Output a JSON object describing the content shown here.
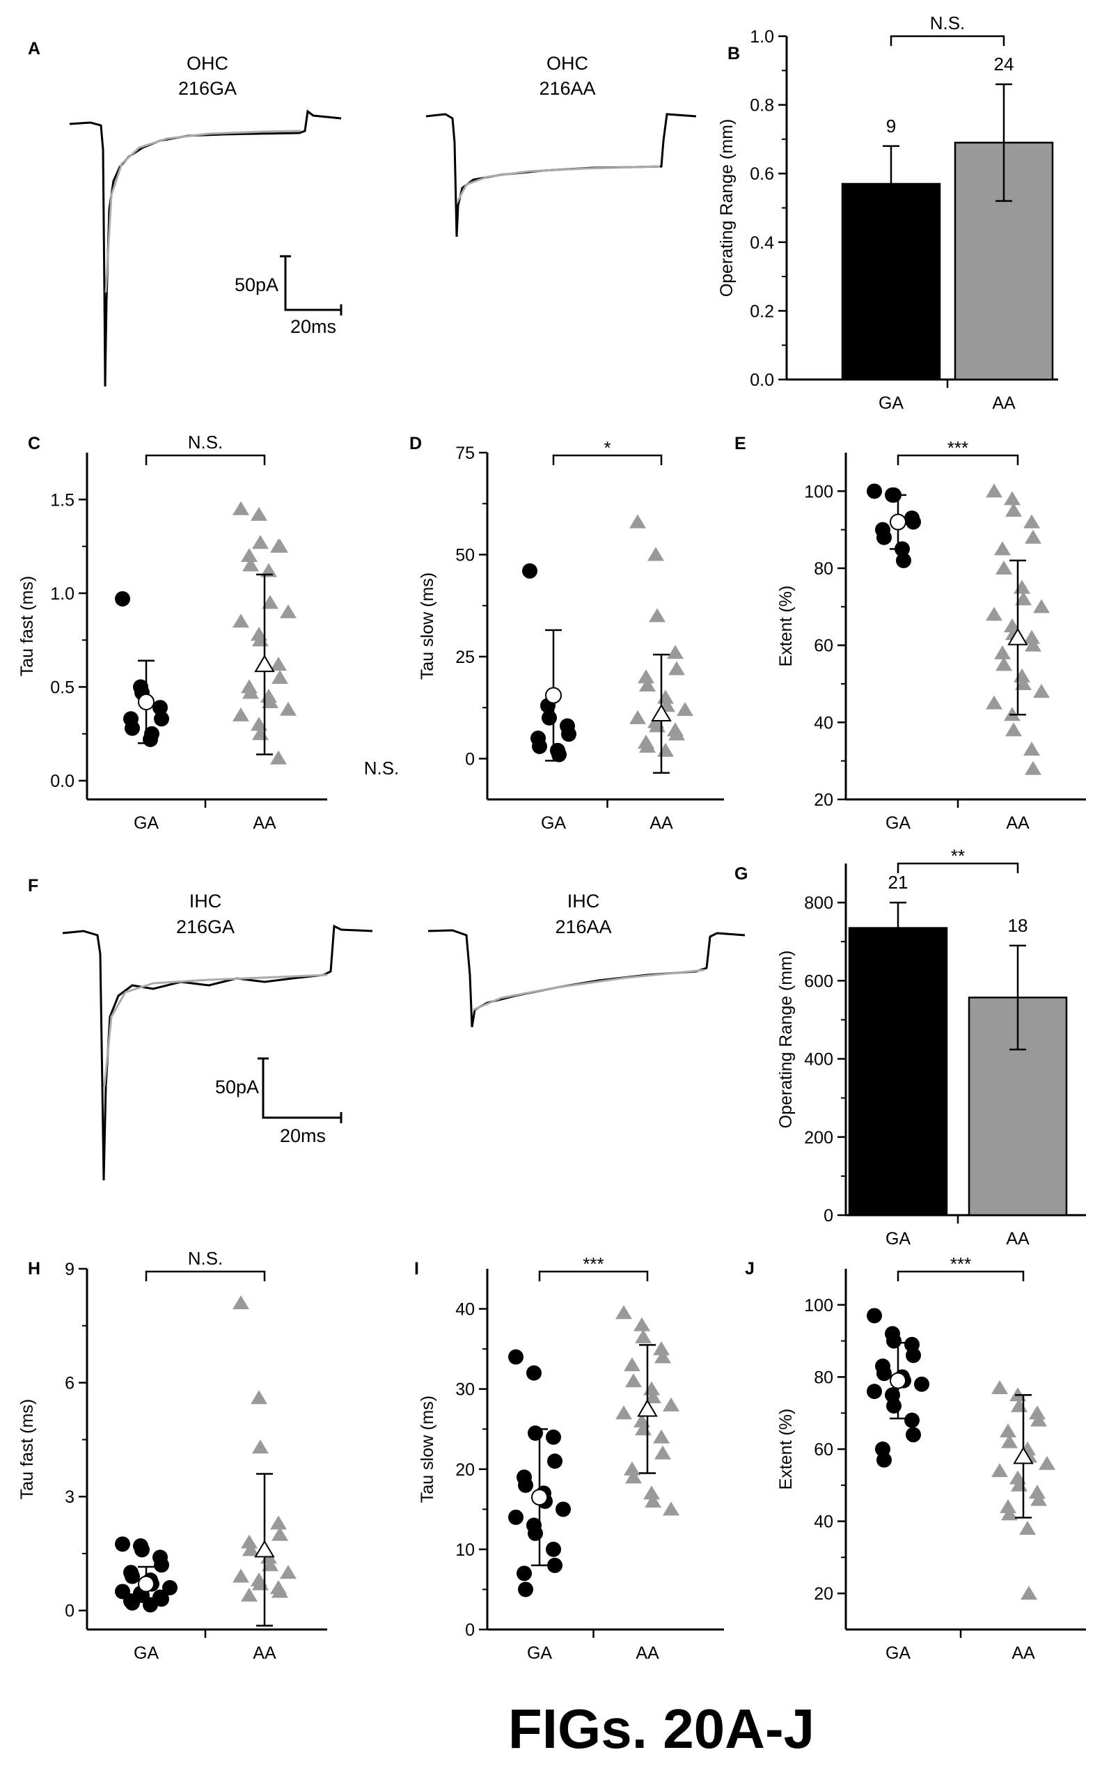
{
  "figure_title": "FIGs. 20A-J",
  "stray_text": "N.S.",
  "colors": {
    "ga": "#000000",
    "aa": "#999999",
    "open_marker": "#ffffff",
    "fit_line": "#aaaaaa"
  },
  "traces": [
    {
      "panel": "A",
      "labels": [
        {
          "line1": "OHC",
          "line2": "216GA"
        },
        {
          "line1": "OHC",
          "line2": "216AA"
        }
      ],
      "scale": {
        "current": "50pA",
        "time": "20ms"
      }
    },
    {
      "panel": "F",
      "labels": [
        {
          "line1": "IHC",
          "line2": "216GA"
        },
        {
          "line1": "IHC",
          "line2": "216AA"
        }
      ],
      "scale": {
        "current": "50pA",
        "time": "20ms"
      }
    }
  ],
  "chart_data": [
    {
      "panel": "B",
      "type": "bar",
      "ylabel": "Operating Range (mm)",
      "categories": [
        "GA",
        "AA"
      ],
      "values": [
        0.57,
        0.69
      ],
      "errors": [
        0.11,
        0.17
      ],
      "n_labels": [
        "9",
        "24"
      ],
      "significance": "N.S.",
      "ylim": [
        0,
        1.0
      ],
      "yticks": [
        0.0,
        0.2,
        0.4,
        0.6,
        0.8,
        1.0
      ],
      "ytick_labels": [
        "0.0",
        "0.2",
        "0.4",
        "0.6",
        "0.8",
        "1.0"
      ]
    },
    {
      "panel": "G",
      "type": "bar",
      "ylabel": "Operating Range (mm)",
      "categories": [
        "GA",
        "AA"
      ],
      "values": [
        735,
        557
      ],
      "errors": [
        65,
        133
      ],
      "n_labels": [
        "21",
        "18"
      ],
      "significance": "**",
      "ylim": [
        0,
        900
      ],
      "yticks": [
        0,
        200,
        400,
        600,
        800
      ],
      "ytick_labels": [
        "0",
        "200",
        "400",
        "600",
        "800"
      ]
    },
    {
      "panel": "C",
      "type": "scatter",
      "ylabel": "Tau fast (ms)",
      "categories": [
        "GA",
        "AA"
      ],
      "significance": "N.S.",
      "ylim": [
        -0.1,
        1.75
      ],
      "yticks": [
        0.0,
        0.5,
        1.0,
        1.5
      ],
      "ytick_labels": [
        "0.0",
        "0.5",
        "1.0",
        "1.5"
      ],
      "series": [
        {
          "category": "GA",
          "marker": "circle",
          "mean": 0.42,
          "sd": 0.22,
          "points": [
            0.97,
            0.5,
            0.47,
            0.39,
            0.33,
            0.33,
            0.28,
            0.22,
            0.25
          ]
        },
        {
          "category": "AA",
          "marker": "triangle",
          "mean": 0.62,
          "sd": 0.48,
          "points": [
            1.45,
            1.42,
            1.27,
            1.25,
            1.25,
            1.2,
            1.15,
            1.12,
            0.95,
            0.9,
            0.85,
            0.78,
            0.75,
            0.62,
            0.55,
            0.5,
            0.47,
            0.45,
            0.42,
            0.38,
            0.35,
            0.3,
            0.25,
            0.12
          ]
        }
      ]
    },
    {
      "panel": "D",
      "type": "scatter",
      "ylabel": "Tau slow (ms)",
      "categories": [
        "GA",
        "AA"
      ],
      "significance": "*",
      "ylim": [
        -10,
        75
      ],
      "yticks": [
        0,
        25,
        50,
        75
      ],
      "ytick_labels": [
        "0",
        "25",
        "50",
        "75"
      ],
      "series": [
        {
          "category": "GA",
          "marker": "circle",
          "mean": 15.5,
          "sd": 16,
          "points": [
            46,
            13,
            10,
            8,
            6,
            5,
            3,
            2,
            1
          ]
        },
        {
          "category": "AA",
          "marker": "triangle",
          "mean": 11,
          "sd": 14.5,
          "points": [
            58,
            50,
            35,
            26,
            22,
            20,
            18,
            15,
            13,
            12,
            10,
            9,
            8,
            7,
            6,
            4,
            3,
            2
          ]
        }
      ]
    },
    {
      "panel": "E",
      "type": "scatter",
      "ylabel": "Extent  (%)",
      "categories": [
        "GA",
        "AA"
      ],
      "significance": "***",
      "ylim": [
        20,
        110
      ],
      "yticks": [
        20,
        40,
        60,
        80,
        100
      ],
      "ytick_labels": [
        "20",
        "40",
        "60",
        "80",
        "100"
      ],
      "series": [
        {
          "category": "GA",
          "marker": "circle",
          "mean": 92,
          "sd": 7,
          "points": [
            100,
            99,
            99,
            93,
            92,
            90,
            88,
            85,
            82
          ]
        },
        {
          "category": "AA",
          "marker": "triangle",
          "mean": 62,
          "sd": 20,
          "points": [
            100,
            98,
            95,
            92,
            88,
            85,
            80,
            75,
            72,
            70,
            68,
            65,
            63,
            62,
            60,
            58,
            55,
            52,
            50,
            48,
            45,
            42,
            38,
            33,
            28
          ]
        }
      ]
    },
    {
      "panel": "H",
      "type": "scatter",
      "ylabel": "Tau fast (ms)",
      "categories": [
        "GA",
        "AA"
      ],
      "significance": "N.S.",
      "ylim": [
        -0.5,
        9
      ],
      "yticks": [
        0,
        3,
        6,
        9
      ],
      "ytick_labels": [
        "0",
        "3",
        "6",
        "9"
      ],
      "series": [
        {
          "category": "GA",
          "marker": "circle",
          "mean": 0.7,
          "sd": 0.45,
          "points": [
            1.75,
            1.7,
            1.6,
            1.4,
            1.2,
            1.0,
            0.9,
            0.8,
            0.7,
            0.6,
            0.5,
            0.45,
            0.4,
            0.35,
            0.3,
            0.25,
            0.2,
            0.15
          ]
        },
        {
          "category": "AA",
          "marker": "triangle",
          "mean": 1.6,
          "sd": 2.0,
          "points": [
            8.1,
            5.6,
            4.3,
            2.3,
            2.0,
            1.8,
            1.6,
            1.4,
            1.2,
            1.0,
            0.9,
            0.8,
            0.7,
            0.6,
            0.5,
            0.4
          ]
        }
      ]
    },
    {
      "panel": "I",
      "type": "scatter",
      "ylabel": "Tau slow (ms)",
      "categories": [
        "GA",
        "AA"
      ],
      "significance": "***",
      "ylim": [
        0,
        45
      ],
      "yticks": [
        0,
        10,
        20,
        30,
        40
      ],
      "ytick_labels": [
        "0",
        "10",
        "20",
        "30",
        "40"
      ],
      "series": [
        {
          "category": "GA",
          "marker": "circle",
          "mean": 16.5,
          "sd": 8.5,
          "points": [
            34,
            32,
            24.5,
            24,
            21,
            19,
            18,
            17,
            16,
            15,
            14,
            13,
            12,
            10,
            8,
            7,
            5
          ]
        },
        {
          "category": "AA",
          "marker": "triangle",
          "mean": 27.5,
          "sd": 8,
          "points": [
            39.5,
            38,
            36.5,
            35,
            34,
            33,
            31,
            30,
            29,
            28,
            27,
            26,
            25,
            24,
            22,
            20,
            19,
            17,
            16,
            15
          ]
        }
      ]
    },
    {
      "panel": "J",
      "type": "scatter",
      "ylabel": "Extent  (%)",
      "categories": [
        "GA",
        "AA"
      ],
      "significance": "***",
      "ylim": [
        10,
        110
      ],
      "yticks": [
        20,
        40,
        60,
        80,
        100
      ],
      "ytick_labels": [
        "20",
        "40",
        "60",
        "80",
        "100"
      ],
      "series": [
        {
          "category": "GA",
          "marker": "circle",
          "mean": 79,
          "sd": 10.5,
          "points": [
            97,
            92,
            90,
            89,
            86,
            83,
            81,
            80,
            79,
            78,
            76,
            75,
            72,
            68,
            64,
            60,
            57
          ]
        },
        {
          "category": "AA",
          "marker": "triangle",
          "mean": 58,
          "sd": 17,
          "points": [
            77,
            75,
            72,
            70,
            68,
            65,
            62,
            60,
            58,
            56,
            54,
            52,
            50,
            48,
            46,
            44,
            42,
            38,
            20
          ]
        }
      ]
    }
  ]
}
